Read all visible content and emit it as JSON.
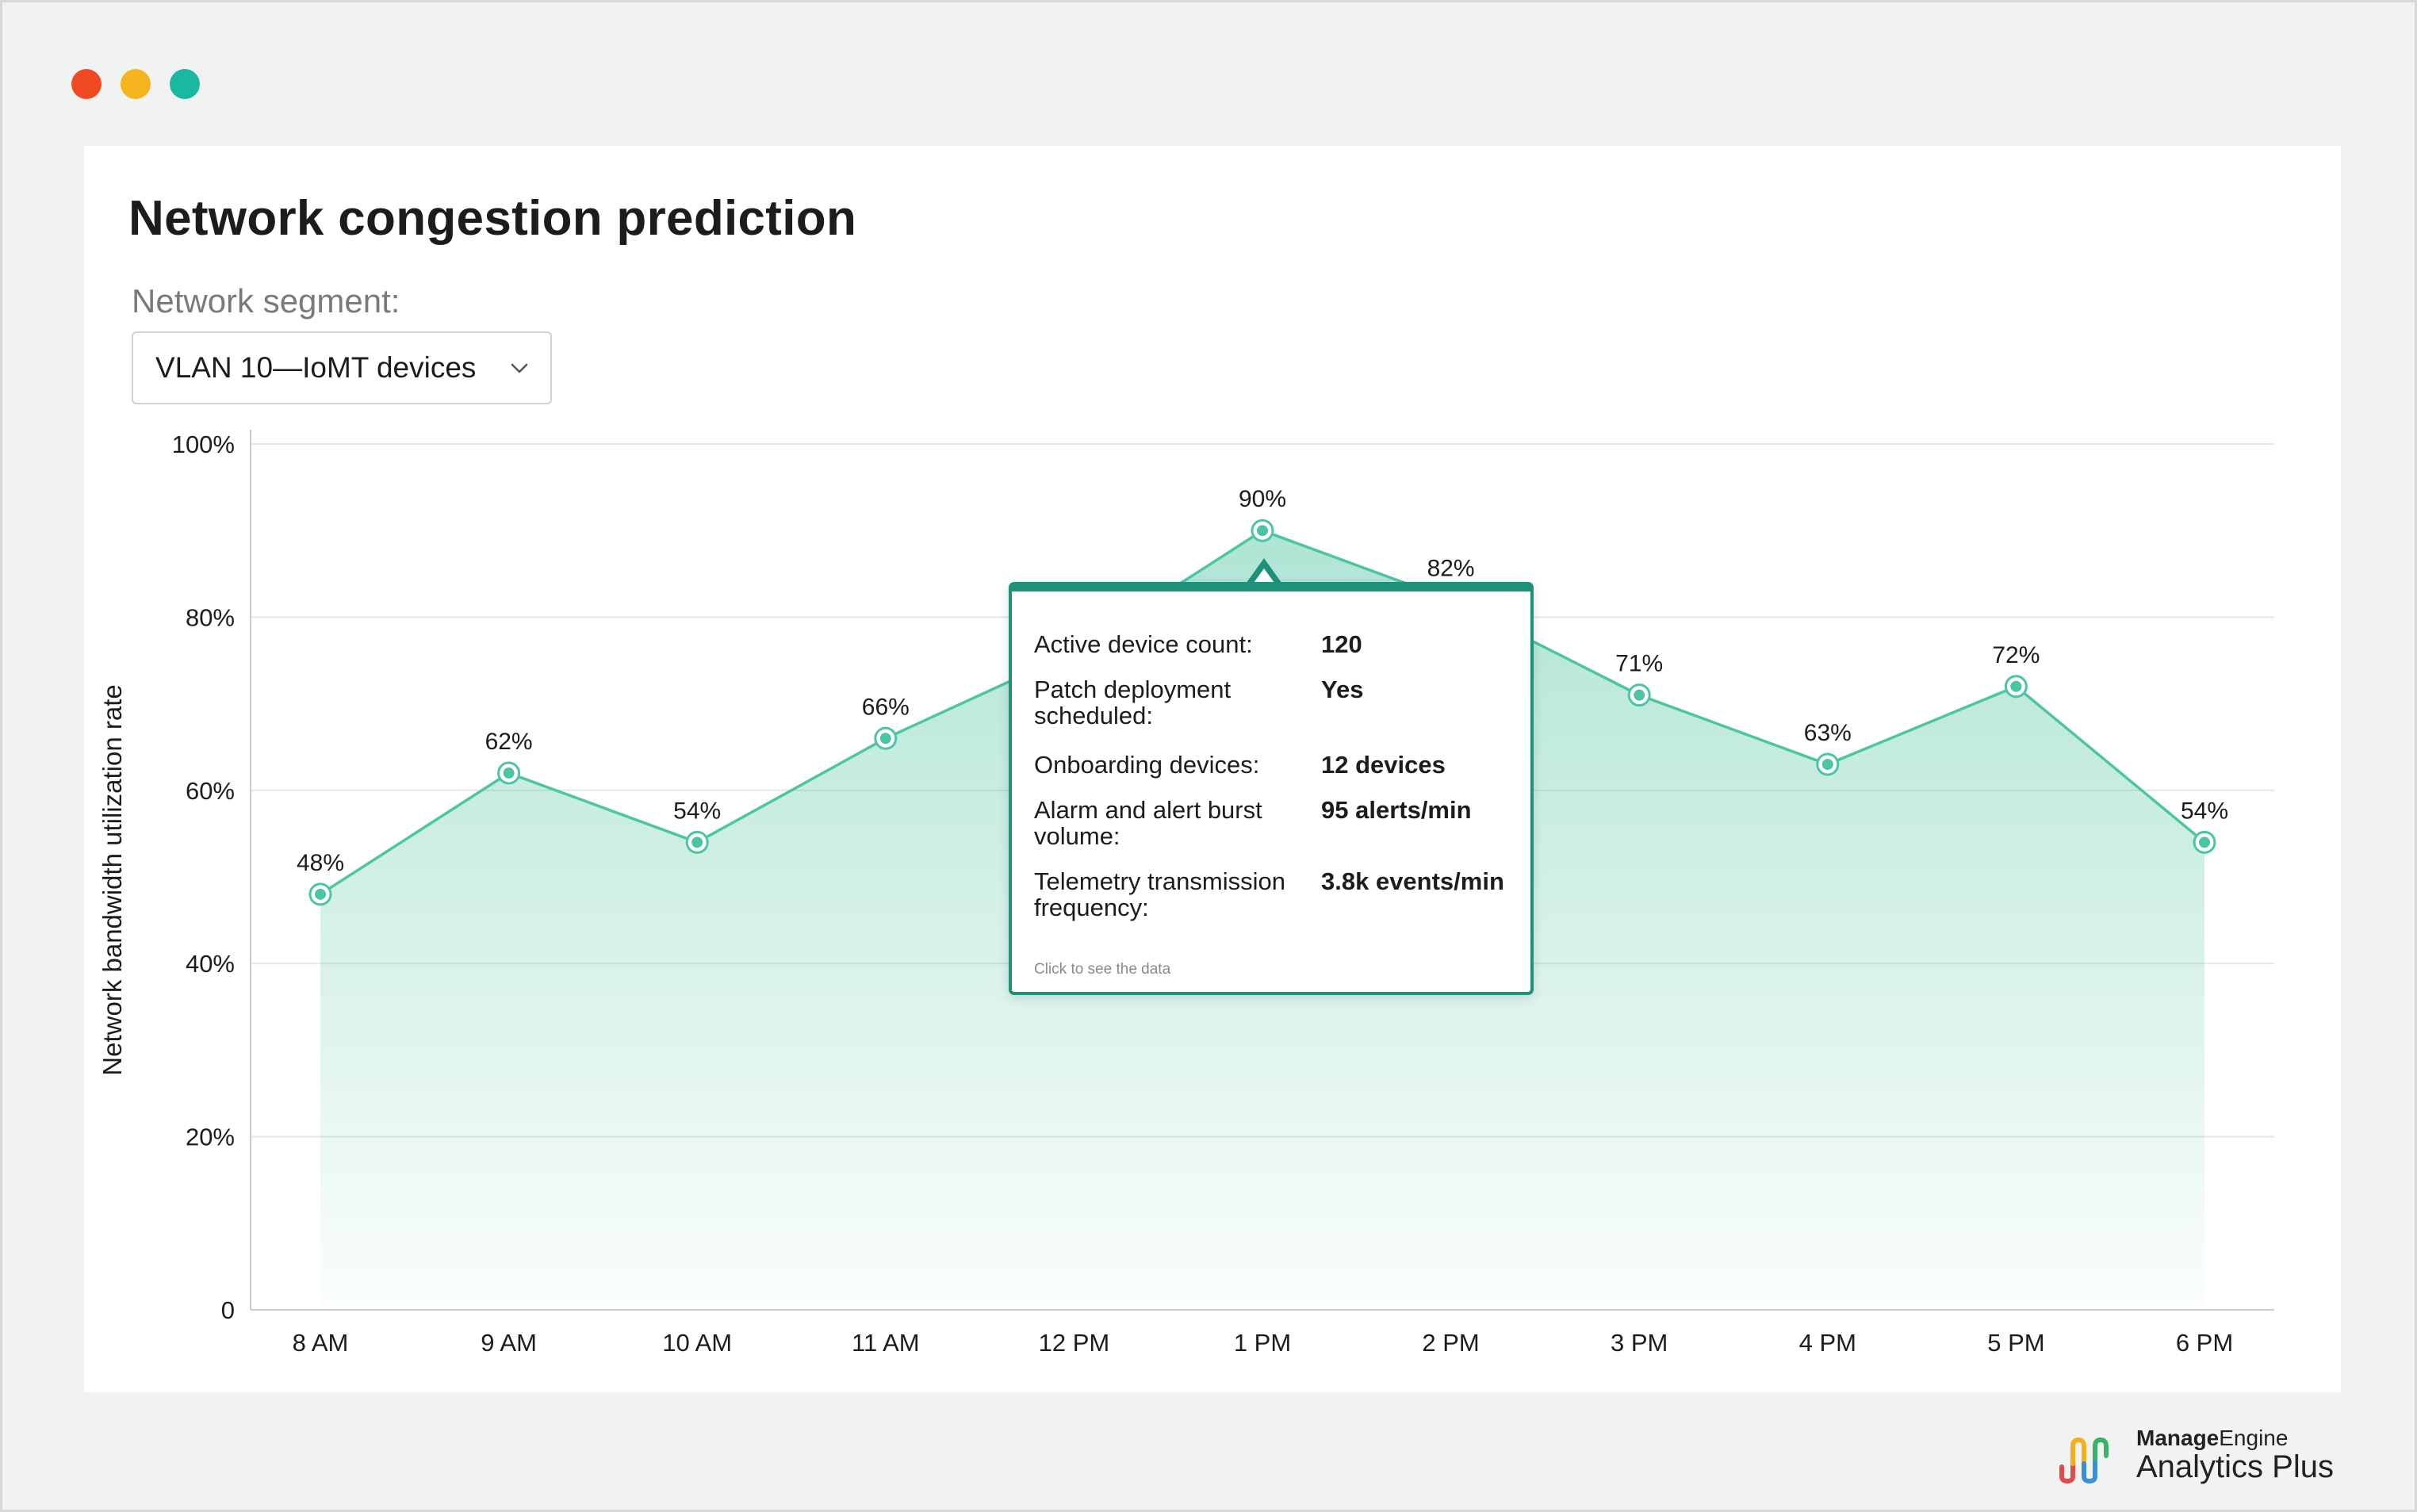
{
  "window": {
    "controls": [
      "close",
      "minimize",
      "maximize"
    ],
    "colors": {
      "close": "#f04a22",
      "minimize": "#f5b51e",
      "maximize": "#1ab8a0"
    }
  },
  "card": {
    "title": "Network congestion prediction",
    "segment_label": "Network segment:",
    "segment_value": "VLAN 10—IoMT devices",
    "segment_icon": "chevron-down-icon"
  },
  "chart_data": {
    "type": "area",
    "categories": [
      "8 AM",
      "9 AM",
      "10 AM",
      "11 AM",
      "12 PM",
      "1 PM",
      "2 PM",
      "3 PM",
      "4 PM",
      "5 PM",
      "6 PM"
    ],
    "values": [
      48,
      62,
      54,
      66,
      76,
      90,
      82,
      71,
      63,
      72,
      54
    ],
    "data_labels": [
      "48%",
      "62%",
      "54%",
      "66%",
      "",
      "90%",
      "82%",
      "71%",
      "63%",
      "72%",
      "54%"
    ],
    "yticks": [
      "0",
      "20%",
      "40%",
      "60%",
      "80%",
      "100%"
    ],
    "ytick_values": [
      0,
      20,
      40,
      60,
      80,
      100
    ],
    "ylim": [
      0,
      100
    ],
    "xlabel": "",
    "ylabel": "Network bandwidth utilization rate",
    "grid": true,
    "line_color": "#4cc5a2",
    "fill_color": "#3fbf97"
  },
  "tooltip": {
    "rows": [
      {
        "label": "Active device count:",
        "value": "120"
      },
      {
        "label": "Patch deployment scheduled:",
        "value": "Yes"
      },
      {
        "label": "Onboarding devices:",
        "value": "12 devices"
      },
      {
        "label": "Alarm and alert burst volume:",
        "value": "95 alerts/min"
      },
      {
        "label": "Telemetry transmission frequency:",
        "value": "3.8k events/min"
      }
    ],
    "hint": "Click to see the data",
    "accent": "#1e9279"
  },
  "brand": {
    "line1_bold": "Manage",
    "line1_rest": "Engine",
    "line2": "Analytics Plus",
    "logo": "analytics-plus-logo",
    "logo_colors": [
      "#e24b4b",
      "#f2b01e",
      "#3a8fd8",
      "#39b26b"
    ]
  }
}
